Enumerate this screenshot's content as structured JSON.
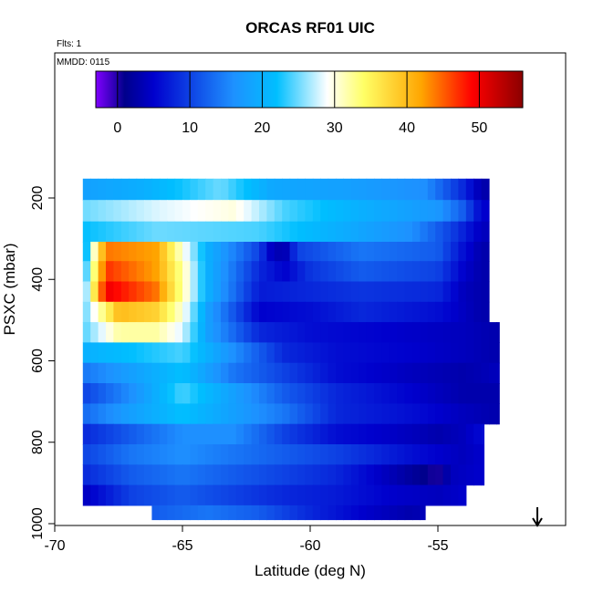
{
  "chart_data": {
    "type": "heatmap",
    "title": "ORCAS RF01 UIC",
    "annotations": [
      "Flts: 1",
      "MMDD: 0115"
    ],
    "xlabel": "Latitude (deg N)",
    "ylabel": "PSXC (mbar)",
    "xlim": [
      -70,
      -50
    ],
    "ylim": [
      1000,
      100
    ],
    "x_ticks": [
      -70,
      -65,
      -60,
      -55
    ],
    "x_tick_labels": [
      "-70",
      "-65",
      "-60",
      "-55"
    ],
    "y_ticks": [
      200,
      400,
      600,
      800,
      1000
    ],
    "y_tick_labels": [
      "200",
      "400",
      "600",
      "800",
      "1000"
    ],
    "colorbar": {
      "range": [
        -3,
        56
      ],
      "ticks": [
        0,
        10,
        20,
        30,
        40,
        50
      ],
      "tick_labels": [
        "0",
        "10",
        "20",
        "30",
        "40",
        "50"
      ],
      "colors": [
        "#8000ff",
        "#00008b",
        "#0000cd",
        "#1e90ff",
        "#00bfff",
        "#ffffff",
        "#ffff66",
        "#ffa500",
        "#ff0000",
        "#8b0000"
      ]
    },
    "grid": false,
    "marker": "arrow-down at lat -53, bottom edge",
    "level_rows": [
      {
        "p": 180,
        "from": -68.9,
        "to": -53.0,
        "values": [
          [
            -68.9,
            18
          ],
          [
            -66.5,
            20
          ],
          [
            -63.5,
            25
          ],
          [
            -61.5,
            19
          ],
          [
            -58.5,
            18
          ],
          [
            -55.5,
            16
          ],
          [
            -54,
            8
          ],
          [
            -53.3,
            3
          ]
        ]
      },
      {
        "p": 230,
        "from": -68.9,
        "to": -53.0,
        "values": [
          [
            -68.9,
            25
          ],
          [
            -66,
            28
          ],
          [
            -63,
            30
          ],
          [
            -61,
            24
          ],
          [
            -58,
            20
          ],
          [
            -55,
            17
          ],
          [
            -54,
            12
          ],
          [
            -53.3,
            5
          ]
        ]
      },
      {
        "p": 285,
        "from": -68.9,
        "to": -53.0,
        "values": [
          [
            -68.9,
            22
          ],
          [
            -66,
            25
          ],
          [
            -62,
            24
          ],
          [
            -59,
            20
          ],
          [
            -56,
            16
          ],
          [
            -54.5,
            10
          ],
          [
            -53.3,
            4
          ]
        ]
      },
      {
        "p": 330,
        "from": -68.9,
        "to": -53.0,
        "values": [
          [
            -68.9,
            18
          ],
          [
            -68,
            44
          ],
          [
            -66,
            42
          ],
          [
            -65,
            30
          ],
          [
            -64,
            20
          ],
          [
            -62,
            10
          ],
          [
            -61.5,
            4
          ],
          [
            -61,
            3
          ],
          [
            -60.5,
            10
          ],
          [
            -58,
            14
          ],
          [
            -55,
            12
          ],
          [
            -54,
            6
          ],
          [
            -53.3,
            3
          ]
        ]
      },
      {
        "p": 380,
        "from": -68.9,
        "to": -53.0,
        "values": [
          [
            -68.9,
            20
          ],
          [
            -68,
            47
          ],
          [
            -66,
            42
          ],
          [
            -65,
            32
          ],
          [
            -64,
            20
          ],
          [
            -62,
            8
          ],
          [
            -61,
            5
          ],
          [
            -60,
            9
          ],
          [
            -58,
            12
          ],
          [
            -55,
            10
          ],
          [
            -54,
            5
          ],
          [
            -53.3,
            3
          ]
        ]
      },
      {
        "p": 430,
        "from": -68.9,
        "to": -53.0,
        "values": [
          [
            -68.9,
            22
          ],
          [
            -68,
            50
          ],
          [
            -66,
            44
          ],
          [
            -65,
            32
          ],
          [
            -64,
            20
          ],
          [
            -62,
            7
          ],
          [
            -60,
            8
          ],
          [
            -58,
            9
          ],
          [
            -55,
            8
          ],
          [
            -54,
            4
          ],
          [
            -53.3,
            3
          ]
        ]
      },
      {
        "p": 480,
        "from": -68.9,
        "to": -53.0,
        "values": [
          [
            -68.9,
            24
          ],
          [
            -67.5,
            40
          ],
          [
            -66,
            38
          ],
          [
            -65,
            30
          ],
          [
            -64,
            18
          ],
          [
            -62,
            5
          ],
          [
            -60,
            6
          ],
          [
            -58,
            8
          ],
          [
            -55,
            6
          ],
          [
            -53.3,
            3
          ]
        ]
      },
      {
        "p": 530,
        "from": -68.9,
        "to": -52.6,
        "values": [
          [
            -68.9,
            24
          ],
          [
            -67.5,
            32
          ],
          [
            -66,
            32
          ],
          [
            -65,
            28
          ],
          [
            -64,
            18
          ],
          [
            -62,
            8
          ],
          [
            -60,
            6
          ],
          [
            -57,
            5
          ],
          [
            -54,
            4
          ],
          [
            -52.6,
            3
          ]
        ]
      },
      {
        "p": 580,
        "from": -68.9,
        "to": -52.6,
        "values": [
          [
            -68.9,
            20
          ],
          [
            -67,
            22
          ],
          [
            -65,
            24
          ],
          [
            -63,
            16
          ],
          [
            -61,
            8
          ],
          [
            -59,
            6
          ],
          [
            -56,
            5
          ],
          [
            -54,
            4
          ],
          [
            -52.6,
            3
          ]
        ]
      },
      {
        "p": 630,
        "from": -68.9,
        "to": -52.6,
        "values": [
          [
            -68.9,
            14
          ],
          [
            -67,
            18
          ],
          [
            -65,
            22
          ],
          [
            -63,
            14
          ],
          [
            -61,
            10
          ],
          [
            -59,
            6
          ],
          [
            -56,
            4
          ],
          [
            -54,
            3
          ],
          [
            -52.6,
            4
          ]
        ]
      },
      {
        "p": 680,
        "from": -68.9,
        "to": -52.6,
        "values": [
          [
            -68.9,
            10
          ],
          [
            -67,
            16
          ],
          [
            -65,
            24
          ],
          [
            -63,
            18
          ],
          [
            -61,
            12
          ],
          [
            -59,
            8
          ],
          [
            -56,
            5
          ],
          [
            -54,
            3
          ],
          [
            -52.6,
            3
          ]
        ]
      },
      {
        "p": 730,
        "from": -68.9,
        "to": -52.6,
        "values": [
          [
            -68.9,
            13
          ],
          [
            -67,
            18
          ],
          [
            -65,
            22
          ],
          [
            -63,
            18
          ],
          [
            -61,
            14
          ],
          [
            -59,
            8
          ],
          [
            -56,
            6
          ],
          [
            -54,
            4
          ],
          [
            -52.6,
            3
          ]
        ]
      },
      {
        "p": 780,
        "from": -68.9,
        "to": -53.2,
        "values": [
          [
            -68.9,
            8
          ],
          [
            -67,
            12
          ],
          [
            -65,
            16
          ],
          [
            -63,
            16
          ],
          [
            -61,
            10
          ],
          [
            -59,
            6
          ],
          [
            -56,
            4
          ],
          [
            -55,
            3
          ],
          [
            -54,
            4
          ],
          [
            -53.2,
            6
          ]
        ]
      },
      {
        "p": 830,
        "from": -68.9,
        "to": -53.2,
        "values": [
          [
            -68.9,
            10
          ],
          [
            -67,
            14
          ],
          [
            -65,
            16
          ],
          [
            -63,
            14
          ],
          [
            -61,
            12
          ],
          [
            -59,
            10
          ],
          [
            -56,
            6
          ],
          [
            -54,
            4
          ],
          [
            -53.2,
            5
          ]
        ]
      },
      {
        "p": 880,
        "from": -68.9,
        "to": -53.2,
        "values": [
          [
            -68.9,
            8
          ],
          [
            -67,
            12
          ],
          [
            -65,
            14
          ],
          [
            -63,
            12
          ],
          [
            -61,
            10
          ],
          [
            -59,
            8
          ],
          [
            -57,
            4
          ],
          [
            -56,
            2
          ],
          [
            -55,
            0
          ],
          [
            -54.5,
            4
          ],
          [
            -53.2,
            5
          ]
        ]
      },
      {
        "p": 930,
        "from": -68.9,
        "to": -53.9,
        "values": [
          [
            -68.9,
            4
          ],
          [
            -67,
            10
          ],
          [
            -65,
            12
          ],
          [
            -63,
            10
          ],
          [
            -61,
            8
          ],
          [
            -59,
            7
          ],
          [
            -57,
            5
          ],
          [
            -55,
            4
          ],
          [
            -53.9,
            5
          ]
        ]
      },
      {
        "p": 980,
        "from": -66.2,
        "to": -55.5,
        "values": [
          [
            -66.2,
            12
          ],
          [
            -64,
            14
          ],
          [
            -62,
            12
          ],
          [
            -60,
            8
          ],
          [
            -58,
            5
          ],
          [
            -56,
            3
          ],
          [
            -55.5,
            4
          ]
        ]
      }
    ]
  }
}
